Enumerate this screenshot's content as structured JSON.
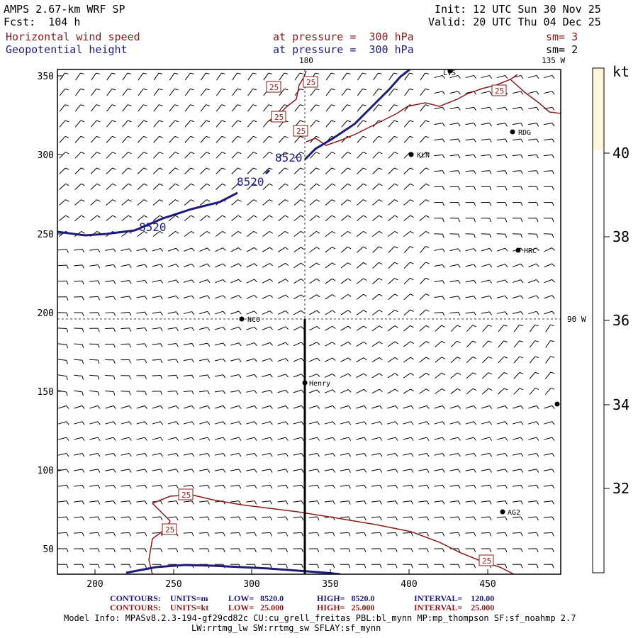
{
  "header": {
    "title": "AMPS 2.67-km WRF SP",
    "forecast": "Fcst:  104 h",
    "init": "Init: 12 UTC Sun 30 Nov 25",
    "valid": "Valid: 20 UTC Thu 04 Dec 25",
    "field1": {
      "name": "Horizontal wind speed",
      "level": "at pressure =  300 hPa",
      "smooth": "sm= 3",
      "color": "#8b1a1a"
    },
    "field2": {
      "name": "Geopotential height",
      "level": "at pressure =  300 hPa",
      "smooth": "sm= 2",
      "color": "#1c1c7c"
    }
  },
  "map": {
    "lon_labels": {
      "top_180": "180",
      "top_135w": "135 W",
      "right_90w": "90 W"
    },
    "x_ticks": [
      "200",
      "250",
      "300",
      "350",
      "400",
      "450"
    ],
    "y_ticks": [
      "350",
      "300",
      "250",
      "200",
      "150",
      "100",
      "50"
    ],
    "stations": [
      "LVS",
      "RDG",
      "KLN",
      "HRC",
      "NCO",
      "Henry",
      "AG2"
    ],
    "height_contour_label": "8520",
    "speed_contour_label": "25"
  },
  "colorbar": {
    "unit": "kt",
    "tick_labels": [
      "40",
      "38",
      "36",
      "34",
      "32"
    ],
    "fill_color": "#fdf6dc"
  },
  "footer": {
    "contours1": {
      "label": "CONTOURS:",
      "units": "UNITS=m",
      "low": "LOW=   8520.0",
      "high": "HIGH=   8520.0",
      "interval": "INTERVAL=    120.00"
    },
    "contours2": {
      "label": "CONTOURS:",
      "units": "UNITS=kt",
      "low": "LOW=   25.000",
      "high": "HIGH=   25.000",
      "interval": "INTERVAL=    25.000"
    },
    "model_info": "Model Info: MPASv8.2.3-194-gf29cd82c CU:cu_grell_freitas PBL:bl_mynn MP:mp_thompson SF:sf_noahmp 2.7",
    "model_info2": "LW:rrtmg_lw SW:rrtmg_sw SFLAY:sf_mynn"
  }
}
